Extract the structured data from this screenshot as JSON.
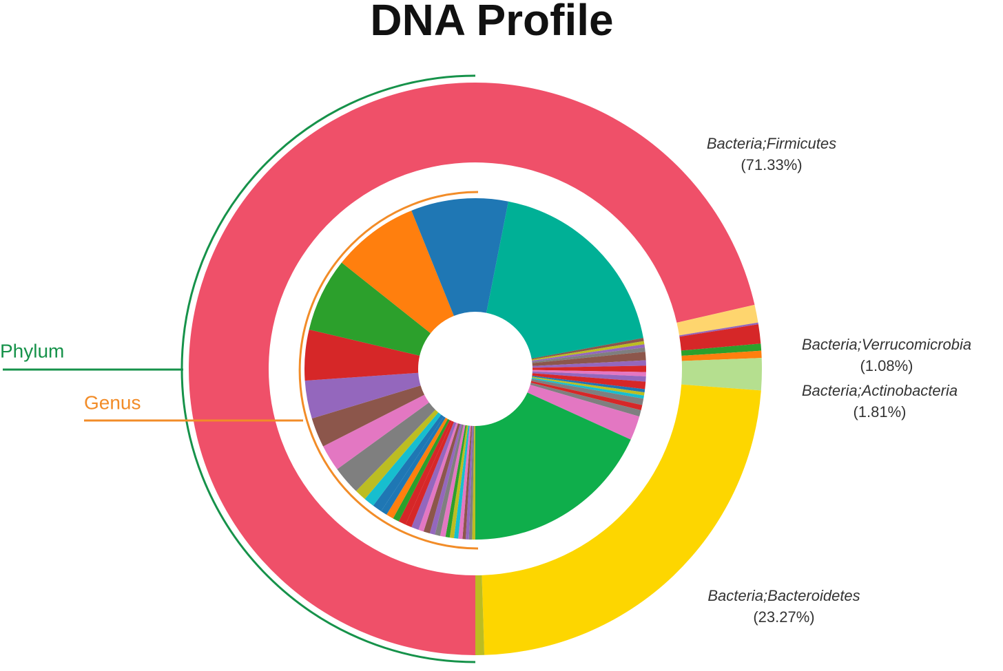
{
  "chart_data": {
    "type": "sunburst",
    "title": "DNA Profile",
    "rings": [
      {
        "name": "Phylum",
        "color": "#16924a",
        "categories": [
          "Bacteria;Firmicutes",
          null,
          null,
          "Bacteria;Verrucomicrobia",
          null,
          null,
          "Bacteria;Actinobacteria",
          "Bacteria;Bacteroidetes",
          null
        ],
        "values": [
          71.33,
          1.0,
          0.1,
          1.08,
          0.4,
          0.4,
          1.81,
          23.27,
          0.5
        ],
        "value_labels": [
          "(71.33%)",
          null,
          null,
          "(1.08%)",
          null,
          null,
          "(1.81%)",
          "(23.27%)",
          null
        ],
        "colors": [
          "#ef5069",
          "#fed56e",
          "#9467bd",
          "#d62728",
          "#2ca02c",
          "#ff7f0e",
          "#b5df8f",
          "#fdd600",
          "#bcbd22"
        ]
      },
      {
        "name": "Genus",
        "color": "#f28c28",
        "values": [
          0.3,
          0.3,
          0.3,
          0.3,
          0.4,
          0.4,
          0.4,
          0.4,
          0.5,
          0.5,
          0.5,
          0.6,
          0.5,
          0.7,
          0.6,
          0.7,
          0.6,
          0.7,
          0.6,
          0.9,
          1.0,
          1.1,
          2.7,
          2.5,
          2.8,
          3.6,
          4.8,
          7.0,
          8.2,
          9.2,
          19.0,
          0.3,
          0.3,
          0.3,
          0.4,
          0.8,
          0.5,
          0.6,
          0.4,
          0.5,
          0.7,
          0.3,
          0.3,
          0.3,
          0.6,
          0.5,
          0.6,
          2.3,
          18.2
        ],
        "colors": [
          "#bcbd22",
          "#7f7f7f",
          "#9467bd",
          "#8c564b",
          "#e377c2",
          "#17becf",
          "#bcbd22",
          "#2ca02c",
          "#e377c2",
          "#7f7f7f",
          "#9467bd",
          "#8c564b",
          "#e377c2",
          "#9467bd",
          "#d62728",
          "#d62728",
          "#2ca02c",
          "#ff7f0e",
          "#1f77b4",
          "#1f77b4",
          "#17becf",
          "#bcbd22",
          "#7f7f7f",
          "#e377c2",
          "#8c564b",
          "#9467bd",
          "#d62728",
          "#2ca02c",
          "#ff7f0e",
          "#1f77b4",
          "#00b096",
          "#8c564b",
          "#bcbd22",
          "#9467bd",
          "#7f7f7f",
          "#8c564b",
          "#9467bd",
          "#d62728",
          "#e377c2",
          "#9467bd",
          "#d62728",
          "#1f77b4",
          "#bcbd22",
          "#17becf",
          "#7f7f7f",
          "#d62728",
          "#7f7f7f",
          "#e377c2",
          "#0fae4b"
        ]
      }
    ]
  }
}
